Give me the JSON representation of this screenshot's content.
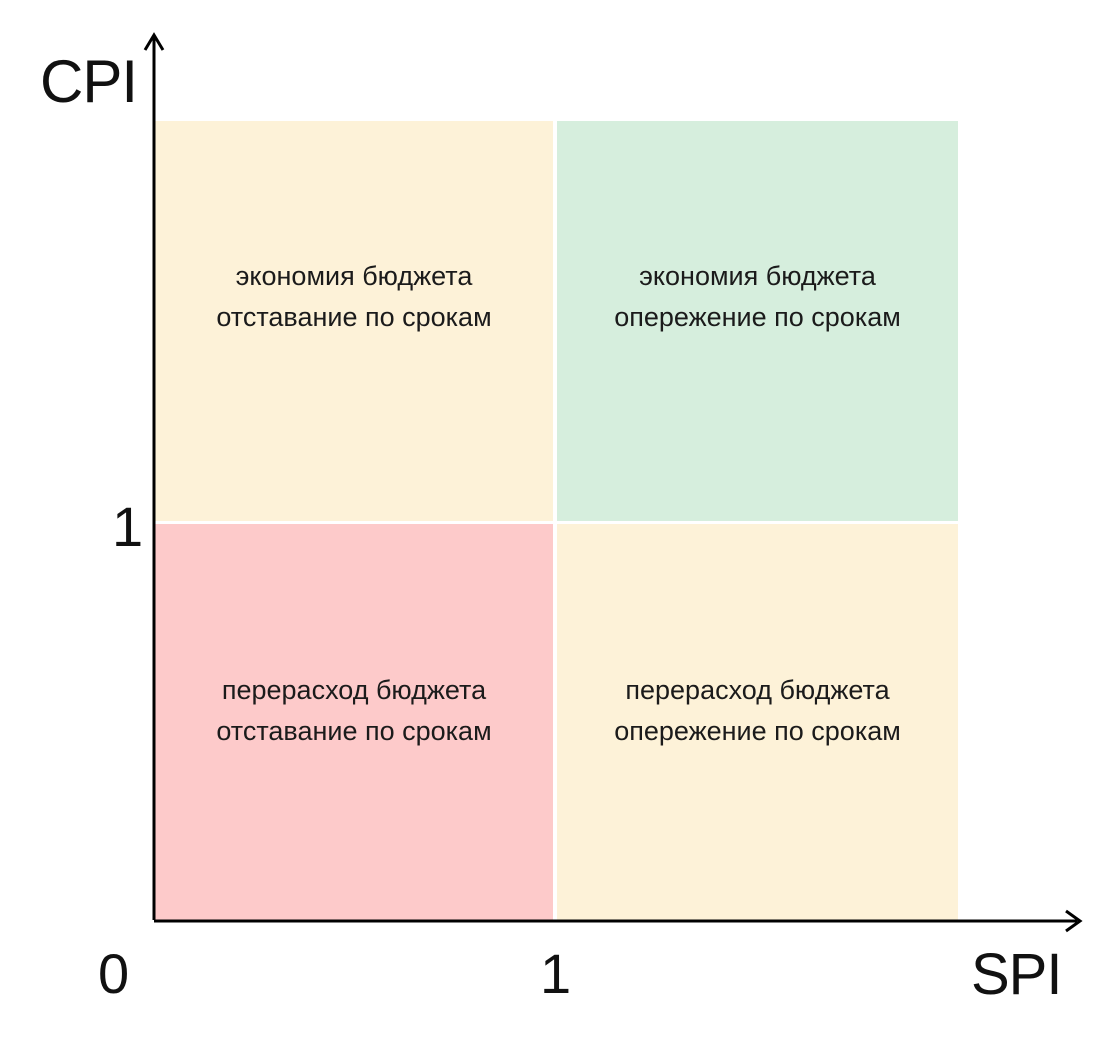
{
  "axes": {
    "x_title": "SPI",
    "y_title": "CPI",
    "origin_label": "0",
    "x_tick": "1",
    "y_tick": "1"
  },
  "colors": {
    "on_track_ahead": "#d6eedd",
    "mixed": "#fdf2d8",
    "overrun_behind": "#fdcaca",
    "axis": "#000000"
  },
  "quadrants": {
    "top_left": {
      "line1": "экономия бюджета",
      "line2": "отставание по срокам"
    },
    "top_right": {
      "line1": "экономия бюджета",
      "line2": "опережение по срокам"
    },
    "bottom_left": {
      "line1": "перерасход бюджета",
      "line2": "отставание по срокам"
    },
    "bottom_right": {
      "line1": "перерасход бюджета",
      "line2": "опережение по срокам"
    }
  }
}
